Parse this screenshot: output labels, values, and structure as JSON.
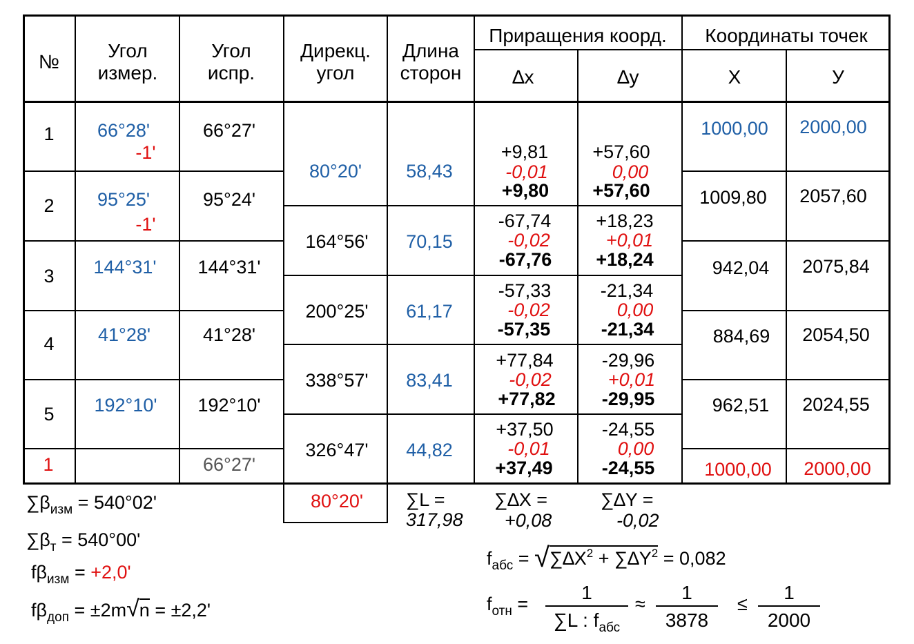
{
  "headers": {
    "no": "№",
    "angle_meas": [
      "Угол",
      "измер."
    ],
    "angle_corr": [
      "Угол",
      "испр."
    ],
    "dir_angle": [
      "Дирекц.",
      "угол"
    ],
    "side_len": [
      "Длина",
      "сторон"
    ],
    "increments": "Приращения коорд.",
    "dx": "∆x",
    "dy": "∆y",
    "coords": "Координаты точек",
    "X": "X",
    "Y": "У"
  },
  "rows": [
    {
      "no": "1",
      "meas": "66°28'",
      "corr_mark": "-1'",
      "corr": "66°27'",
      "X": "1000,00",
      "Y": "2000,00"
    },
    {
      "no": "2",
      "meas": "95°25'",
      "corr_mark": "-1'",
      "corr": "95°24'",
      "X": "1009,80",
      "Y": "2057,60"
    },
    {
      "no": "3",
      "meas": "144°31'",
      "corr_mark": "",
      "corr": "144°31'",
      "X": "942,04",
      "Y": "2075,84"
    },
    {
      "no": "4",
      "meas": "41°28'",
      "corr_mark": "",
      "corr": "41°28'",
      "X": "884,69",
      "Y": "2054,50"
    },
    {
      "no": "5",
      "meas": "192°10'",
      "corr_mark": "",
      "corr": "192°10'",
      "X": "962,51",
      "Y": "2024,55"
    },
    {
      "no": "1",
      "meas": "",
      "corr_mark": "",
      "corr": "66°27'",
      "X": "1000,00",
      "Y": "2000,00"
    }
  ],
  "sides": [
    {
      "dir": "80°20'",
      "len": "58,43",
      "dx": "+9,81",
      "dx_corr": "-0,01",
      "dx_final": "+9,80",
      "dy": "+57,60",
      "dy_corr": "0,00",
      "dy_final": "+57,60"
    },
    {
      "dir": "164°56'",
      "len": "70,15",
      "dx": "-67,74",
      "dx_corr": "-0,02",
      "dx_final": "-67,76",
      "dy": "+18,23",
      "dy_corr": "+0,01",
      "dy_final": "+18,24"
    },
    {
      "dir": "200°25'",
      "len": "61,17",
      "dx": "-57,33",
      "dx_corr": "-0,02",
      "dx_final": "-57,35",
      "dy": "-21,34",
      "dy_corr": "0,00",
      "dy_final": "-21,34"
    },
    {
      "dir": "338°57'",
      "len": "83,41",
      "dx": "+77,84",
      "dx_corr": "-0,02",
      "dx_final": "+77,82",
      "dy": "-29,96",
      "dy_corr": "+0,01",
      "dy_final": "-29,95"
    },
    {
      "dir": "326°47'",
      "len": "44,82",
      "dx": "+37,50",
      "dx_corr": "-0,01",
      "dx_final": "+37,49",
      "dy": "-24,55",
      "dy_corr": "0,00",
      "dy_final": "-24,55"
    }
  ],
  "closing_dir": "80°20'",
  "summary": {
    "sum_meas_lhs": "∑β",
    "sum_meas_sub": "изм",
    "sum_meas_rhs": " = 540°02'",
    "sum_theor_lhs": "∑β",
    "sum_theor_sub": "т",
    "sum_theor_rhs": " = 540°00'",
    "f_meas_lhs": "fβ",
    "f_meas_sub": "изм",
    "f_meas_eq": " = ",
    "f_meas_val": "+2,0'",
    "f_allow_lhs": "fβ",
    "f_allow_sub": "доп",
    "f_allow_mid": " = ±2m",
    "f_allow_n": "n",
    "f_allow_rhs": " = ±2,2'",
    "sum_L_top": "∑L =",
    "sum_L_val": "317,98",
    "sum_dx_top": "∑∆X =",
    "sum_dx_val": "+0,08",
    "sum_dy_top": "∑∆Y =",
    "sum_dy_val": "-0,02",
    "fabs_lhs": "f",
    "fabs_sub": "абс",
    "fabs_eq": " = ",
    "fabs_rad_a": "∑∆X",
    "fabs_rad_b": " + ∑∆Y",
    "fabs_sup": "2",
    "fabs_rhs": " = 0,082",
    "fotn_lhs": "f",
    "fotn_sub": "отн",
    "fotn_eq": " = ",
    "fotn_num": "1",
    "fotn_den_a": "∑L : f",
    "fotn_den_sub": "абс",
    "fotn_approx": "≈",
    "fotn_num2": "1",
    "fotn_den2": "3878",
    "fotn_le": "≤",
    "fotn_num3": "1",
    "fotn_den3": "2000"
  }
}
